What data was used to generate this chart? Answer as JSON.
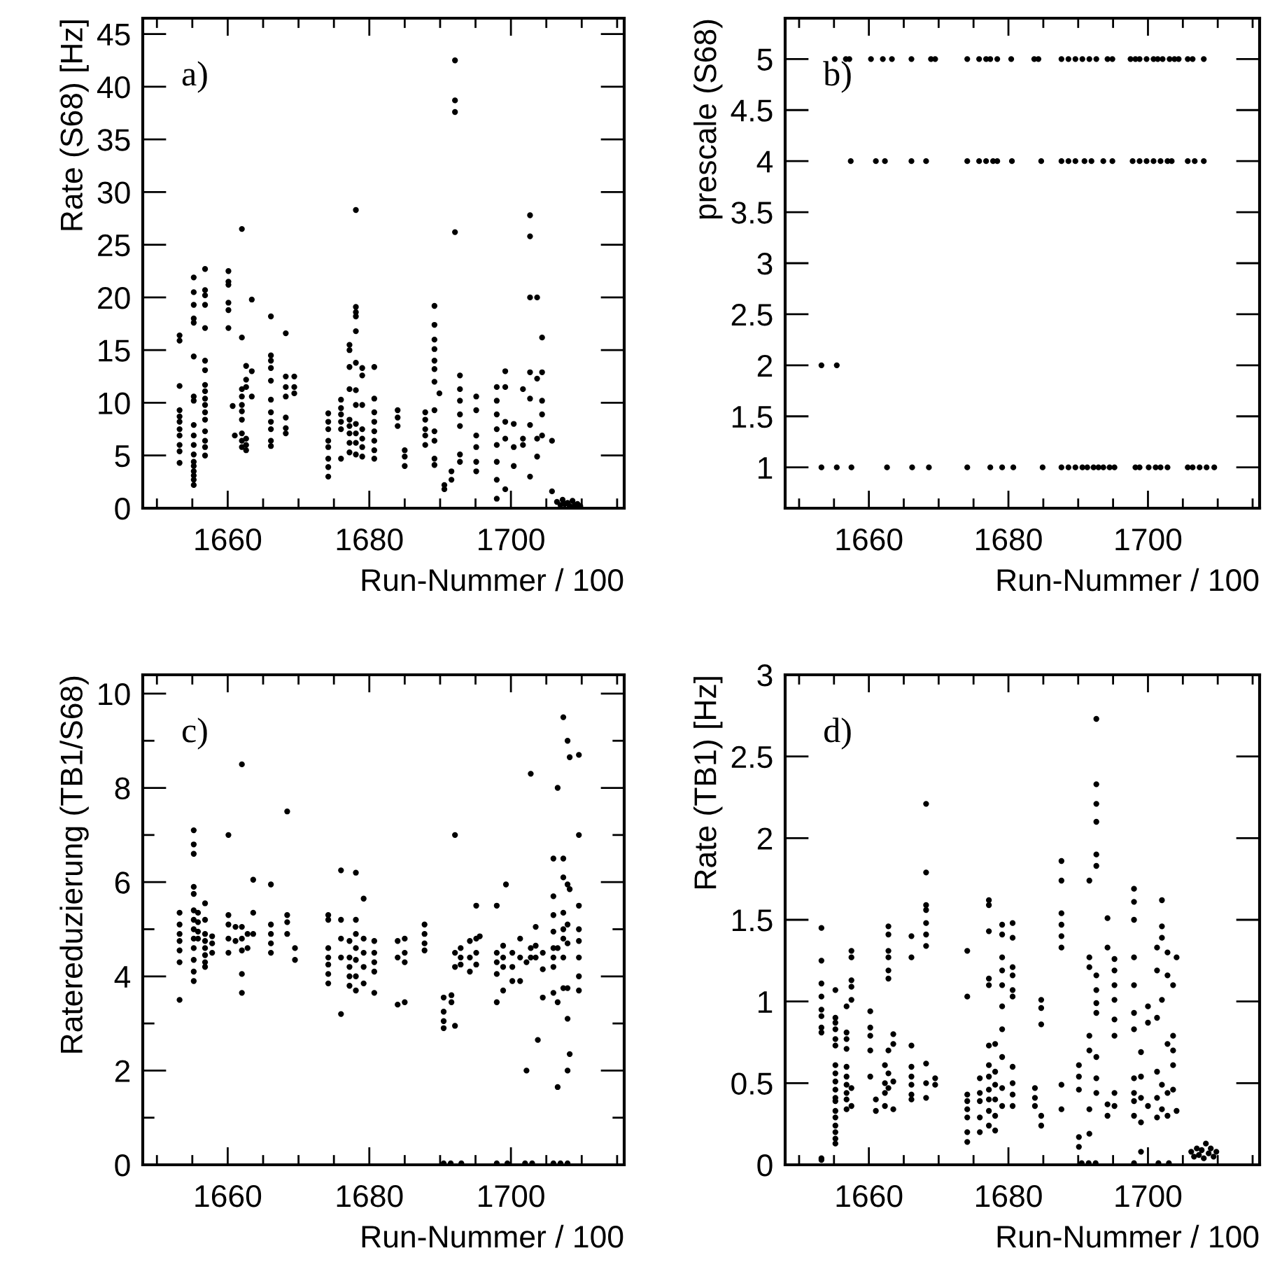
{
  "chart_data": [
    {
      "type": "scatter",
      "ylabel": "Rate (S68) [Hz]",
      "xlabel": "Run-Nummer / 100",
      "annotations": [
        "a)"
      ],
      "marker": "circle",
      "color": "#000000",
      "xlim": [
        1648,
        1716
      ],
      "ylim": [
        0,
        46.5
      ],
      "xticks": [
        {
          "value": 1650,
          "label": null
        },
        {
          "value": 1655,
          "label": null
        },
        1660,
        {
          "value": 1665,
          "label": null
        },
        {
          "value": 1670,
          "label": null
        },
        {
          "value": 1675,
          "label": null
        },
        1680,
        {
          "value": 1685,
          "label": null
        },
        {
          "value": 1690,
          "label": null
        },
        {
          "value": 1695,
          "label": null
        },
        1700,
        {
          "value": 1705,
          "label": null
        },
        {
          "value": 1710,
          "label": null
        },
        {
          "value": 1715,
          "label": null
        }
      ],
      "yticks": [
        0,
        5,
        10,
        15,
        20,
        25,
        30,
        35,
        40,
        45
      ],
      "x": [
        1653.2,
        1653.2,
        1653.2,
        1653.2,
        1653.2,
        1653.2,
        1653.2,
        1653.2,
        1653.2,
        1653.2,
        1653.2,
        1655.2,
        1655.2,
        1655.2,
        1655.2,
        1655.2,
        1655.2,
        1655.2,
        1655.2,
        1655.2,
        1655.2,
        1655.2,
        1655.2,
        1655.2,
        1655.2,
        1655.2,
        1655.2,
        1655.2,
        1655.2,
        1656.8,
        1656.8,
        1656.8,
        1656.8,
        1656.8,
        1656.8,
        1656.8,
        1656.8,
        1656.8,
        1656.8,
        1656.8,
        1656.8,
        1656.8,
        1656.8,
        1656.8,
        1656.8,
        1656.8,
        1660.1,
        1660.1,
        1660.1,
        1660.1,
        1660.1,
        1660.1,
        1660.7,
        1661.0,
        1662.0,
        1662.0,
        1662.0,
        1662.0,
        1662.0,
        1662.0,
        1662.0,
        1662.0,
        1662.0,
        1662.0,
        1662.6,
        1662.6,
        1662.6,
        1662.6,
        1662.6,
        1662.6,
        1663.4,
        1663.4,
        1663.4,
        1666.1,
        1666.1,
        1666.1,
        1666.1,
        1666.1,
        1666.1,
        1666.1,
        1666.1,
        1666.1,
        1666.1,
        1666.1,
        1668.2,
        1668.2,
        1668.2,
        1668.2,
        1668.2,
        1668.2,
        1668.2,
        1669.4,
        1669.4,
        1669.4,
        1674.2,
        1674.2,
        1674.2,
        1674.2,
        1674.2,
        1674.2,
        1674.2,
        1674.2,
        1676.0,
        1676.0,
        1676.0,
        1676.0,
        1676.0,
        1676.0,
        1677.2,
        1677.2,
        1677.2,
        1677.2,
        1677.2,
        1677.2,
        1677.2,
        1677.2,
        1677.2,
        1678.1,
        1678.1,
        1678.1,
        1678.1,
        1678.1,
        1678.1,
        1678.1,
        1678.1,
        1678.1,
        1678.1,
        1678.1,
        1678.1,
        1679.0,
        1679.0,
        1679.0,
        1679.0,
        1679.0,
        1679.0,
        1679.0,
        1680.7,
        1680.7,
        1680.7,
        1680.7,
        1680.7,
        1680.7,
        1680.7,
        1680.7,
        1684.0,
        1684.0,
        1684.0,
        1685.0,
        1685.0,
        1685.0,
        1687.9,
        1687.9,
        1687.9,
        1687.9,
        1687.9,
        1689.2,
        1689.2,
        1689.2,
        1689.2,
        1689.2,
        1689.2,
        1689.2,
        1689.2,
        1689.2,
        1689.2,
        1689.2,
        1689.2,
        1689.9,
        1690.6,
        1690.6,
        1691.6,
        1691.6,
        1692.1,
        1692.1,
        1692.1,
        1692.1,
        1692.8,
        1692.8,
        1692.8,
        1692.8,
        1692.8,
        1692.8,
        1692.8,
        1695.1,
        1695.1,
        1695.1,
        1695.1,
        1695.1,
        1695.1,
        1698.0,
        1698.0,
        1698.0,
        1698.0,
        1698.0,
        1698.0,
        1698.0,
        1698.0,
        1699.2,
        1699.2,
        1699.2,
        1699.2,
        1699.2,
        1700.4,
        1700.4,
        1700.4,
        1701.7,
        1701.7,
        1701.7,
        1702.7,
        1702.7,
        1702.7,
        1702.7,
        1702.7,
        1702.7,
        1702.7,
        1703.7,
        1703.7,
        1703.7,
        1703.7,
        1704.4,
        1704.4,
        1704.4,
        1704.4,
        1704.4,
        1705.8,
        1705.8,
        1706.5,
        1707.0,
        1707.3,
        1707.6,
        1708.0,
        1708.3,
        1708.7,
        1709.0,
        1709.4,
        1709.8
      ],
      "values": [
        16.4,
        15.9,
        11.6,
        9.3,
        8.7,
        8.2,
        7.5,
        6.9,
        6.0,
        5.4,
        4.3,
        21.9,
        20.5,
        19.3,
        18.0,
        17.6,
        14.4,
        10.6,
        10.2,
        7.9,
        6.9,
        6.0,
        5.1,
        4.4,
        4.0,
        3.5,
        3.1,
        2.7,
        2.2,
        22.7,
        20.7,
        20.2,
        19.3,
        17.1,
        14.0,
        13.1,
        11.7,
        11.1,
        10.4,
        9.8,
        9.1,
        8.4,
        7.3,
        6.4,
        5.8,
        5.0,
        22.5,
        21.5,
        21.2,
        19.5,
        18.8,
        17.1,
        9.7,
        6.9,
        26.5,
        16.2,
        11.3,
        10.6,
        9.8,
        9.2,
        8.4,
        7.1,
        6.4,
        5.8,
        13.5,
        12.2,
        11.5,
        6.6,
        6.0,
        5.5,
        19.8,
        13.0,
        10.6,
        18.2,
        14.5,
        14.0,
        13.3,
        12.1,
        10.3,
        9.1,
        8.2,
        7.5,
        6.4,
        5.9,
        16.6,
        12.5,
        11.5,
        10.6,
        8.6,
        7.6,
        7.1,
        12.5,
        11.5,
        10.9,
        9.0,
        8.2,
        7.5,
        6.4,
        5.8,
        4.7,
        3.9,
        3.0,
        10.3,
        9.5,
        8.9,
        8.2,
        7.5,
        4.7,
        15.5,
        15.0,
        13.4,
        11.3,
        8.4,
        7.8,
        7.1,
        6.2,
        5.3,
        28.3,
        19.1,
        18.6,
        18.2,
        16.8,
        13.8,
        11.2,
        9.8,
        8.0,
        7.1,
        6.2,
        5.1,
        13.3,
        12.6,
        9.8,
        7.5,
        6.6,
        5.8,
        4.9,
        13.4,
        10.4,
        9.1,
        8.2,
        7.3,
        6.4,
        5.5,
        4.7,
        9.3,
        8.6,
        7.8,
        5.5,
        4.9,
        4.0,
        9.1,
        8.4,
        7.5,
        6.9,
        6.0,
        19.2,
        17.4,
        16.0,
        15.1,
        14.0,
        13.2,
        12.0,
        9.3,
        7.3,
        6.4,
        4.7,
        4.1,
        10.9,
        2.2,
        1.8,
        3.5,
        2.7,
        42.5,
        38.7,
        37.6,
        26.2,
        12.6,
        11.3,
        10.2,
        8.9,
        7.8,
        5.1,
        4.4,
        10.6,
        9.3,
        6.9,
        5.8,
        4.4,
        3.5,
        11.5,
        10.2,
        8.9,
        7.5,
        6.0,
        4.4,
        2.7,
        0.9,
        13.0,
        11.5,
        8.2,
        6.6,
        1.8,
        8.0,
        5.8,
        4.0,
        11.3,
        6.6,
        6.0,
        27.8,
        25.8,
        20.0,
        12.9,
        10.4,
        7.9,
        3.0,
        20.0,
        12.3,
        6.6,
        4.9,
        16.2,
        12.9,
        10.2,
        8.9,
        6.9,
        6.4,
        1.6,
        0.6,
        0.3,
        0.8,
        0.4,
        0.5,
        0.2,
        0.7,
        0.3,
        0.4,
        0.2
      ]
    },
    {
      "type": "scatter",
      "ylabel": "prescale (S68)",
      "xlabel": "Run-Nummer / 100",
      "annotations": [
        "b)"
      ],
      "marker": "circle",
      "color": "#000000",
      "xlim": [
        1648,
        1716
      ],
      "ylim": [
        0.6,
        5.4
      ],
      "xticks": [
        {
          "value": 1650,
          "label": null
        },
        {
          "value": 1655,
          "label": null
        },
        1660,
        {
          "value": 1665,
          "label": null
        },
        {
          "value": 1670,
          "label": null
        },
        {
          "value": 1675,
          "label": null
        },
        1680,
        {
          "value": 1685,
          "label": null
        },
        {
          "value": 1690,
          "label": null
        },
        {
          "value": 1695,
          "label": null
        },
        1700,
        {
          "value": 1705,
          "label": null
        },
        {
          "value": 1710,
          "label": null
        },
        {
          "value": 1715,
          "label": null
        }
      ],
      "yticks": [
        1,
        1.5,
        2,
        2.5,
        3,
        3.5,
        4,
        4.5,
        5
      ],
      "x": [
        1655.1,
        1656.7,
        1657.2,
        1660.3,
        1662.0,
        1663.3,
        1666.1,
        1668.9,
        1669.5,
        1674.1,
        1675.8,
        1676.8,
        1677.4,
        1678.4,
        1680.4,
        1683.7,
        1684.3,
        1687.6,
        1688.6,
        1689.6,
        1690.6,
        1691.6,
        1692.6,
        1694.2,
        1694.9,
        1697.5,
        1698.2,
        1698.8,
        1699.8,
        1700.8,
        1701.4,
        1702.1,
        1703.1,
        1703.8,
        1704.4,
        1705.7,
        1706.4,
        1708.0,
        1657.4,
        1661.0,
        1662.3,
        1666.1,
        1668.2,
        1674.1,
        1675.8,
        1676.8,
        1677.8,
        1678.4,
        1680.5,
        1684.7,
        1687.6,
        1688.6,
        1689.6,
        1690.9,
        1691.9,
        1693.6,
        1694.9,
        1697.8,
        1698.8,
        1699.8,
        1700.8,
        1701.8,
        1702.8,
        1703.4,
        1705.7,
        1706.7,
        1708.0,
        1653.2,
        1655.4,
        1653.2,
        1655.4,
        1657.5,
        1662.6,
        1666.2,
        1668.6,
        1674.1,
        1677.4,
        1679.1,
        1680.7,
        1684.9,
        1687.6,
        1688.6,
        1689.6,
        1690.6,
        1691.3,
        1692.2,
        1692.9,
        1693.6,
        1694.5,
        1695.2,
        1698.2,
        1698.8,
        1700.1,
        1701.1,
        1701.8,
        1702.8,
        1705.7,
        1706.4,
        1707.4,
        1708.4,
        1709.5
      ],
      "values": [
        5,
        5,
        5,
        5,
        5,
        5,
        5,
        5,
        5,
        5,
        5,
        5,
        5,
        5,
        5,
        5,
        5,
        5,
        5,
        5,
        5,
        5,
        5,
        5,
        5,
        5,
        5,
        5,
        5,
        5,
        5,
        5,
        5,
        5,
        5,
        5,
        5,
        5,
        4,
        4,
        4,
        4,
        4,
        4,
        4,
        4,
        4,
        4,
        4,
        4,
        4,
        4,
        4,
        4,
        4,
        4,
        4,
        4,
        4,
        4,
        4,
        4,
        4,
        4,
        4,
        4,
        4,
        2,
        2,
        1,
        1,
        1,
        1,
        1,
        1,
        1,
        1,
        1,
        1,
        1,
        1,
        1,
        1,
        1,
        1,
        1,
        1,
        1,
        1,
        1,
        1,
        1,
        1,
        1,
        1,
        1,
        1,
        1,
        1,
        1,
        1
      ]
    },
    {
      "type": "scatter",
      "ylabel": "Ratereduzierung (TB1/S68)",
      "xlabel": "Run-Nummer / 100",
      "annotations": [
        "c)"
      ],
      "marker": "circle",
      "color": "#000000",
      "xlim": [
        1648,
        1716
      ],
      "ylim": [
        0,
        10.4
      ],
      "xticks": [
        {
          "value": 1650,
          "label": null
        },
        {
          "value": 1655,
          "label": null
        },
        1660,
        {
          "value": 1665,
          "label": null
        },
        {
          "value": 1670,
          "label": null
        },
        {
          "value": 1675,
          "label": null
        },
        1680,
        {
          "value": 1685,
          "label": null
        },
        {
          "value": 1690,
          "label": null
        },
        {
          "value": 1695,
          "label": null
        },
        1700,
        {
          "value": 1705,
          "label": null
        },
        {
          "value": 1710,
          "label": null
        },
        {
          "value": 1715,
          "label": null
        }
      ],
      "yticks": [
        0,
        {
          "value": 1,
          "label": null
        },
        2,
        {
          "value": 3,
          "label": null
        },
        4,
        {
          "value": 5,
          "label": null
        },
        6,
        {
          "value": 7,
          "label": null
        },
        8,
        {
          "value": 9,
          "label": null
        },
        10
      ],
      "x": [
        1653.2,
        1653.2,
        1653.2,
        1653.2,
        1653.2,
        1653.2,
        1653.2,
        1655.2,
        1655.2,
        1655.2,
        1655.2,
        1655.2,
        1655.2,
        1655.2,
        1655.2,
        1655.2,
        1655.2,
        1655.2,
        1655.2,
        1655.2,
        1655.8,
        1655.8,
        1655.8,
        1655.8,
        1656.8,
        1656.8,
        1656.8,
        1656.8,
        1656.8,
        1656.8,
        1656.8,
        1656.8,
        1657.8,
        1657.8,
        1657.8,
        1660.1,
        1660.1,
        1660.1,
        1660.1,
        1660.1,
        1661.1,
        1661.1,
        1662.0,
        1662.0,
        1662.0,
        1662.0,
        1662.0,
        1662.0,
        1662.8,
        1662.8,
        1663.6,
        1663.6,
        1663.6,
        1666.1,
        1666.1,
        1666.1,
        1666.1,
        1666.1,
        1668.4,
        1668.4,
        1668.4,
        1668.4,
        1669.5,
        1669.5,
        1674.2,
        1674.2,
        1674.2,
        1674.2,
        1674.2,
        1674.2,
        1674.2,
        1676.0,
        1676.0,
        1676.0,
        1676.0,
        1676.0,
        1677.2,
        1677.2,
        1677.2,
        1677.2,
        1677.2,
        1678.1,
        1678.1,
        1678.1,
        1678.1,
        1678.1,
        1678.1,
        1678.1,
        1679.2,
        1679.2,
        1679.2,
        1679.2,
        1679.2,
        1680.7,
        1680.7,
        1680.7,
        1680.7,
        1680.7,
        1684.0,
        1684.0,
        1684.0,
        1685.0,
        1685.0,
        1685.0,
        1685.0,
        1687.8,
        1687.8,
        1687.8,
        1687.8,
        1690.5,
        1690.5,
        1690.5,
        1690.5,
        1691.6,
        1691.6,
        1692.1,
        1692.1,
        1692.1,
        1692.1,
        1692.9,
        1692.9,
        1692.9,
        1694.2,
        1694.2,
        1694.2,
        1695.1,
        1695.1,
        1695.1,
        1695.1,
        1695.6,
        1698.0,
        1698.0,
        1698.0,
        1698.0,
        1698.0,
        1698.9,
        1698.9,
        1698.9,
        1698.9,
        1699.3,
        1700.2,
        1700.2,
        1700.2,
        1701.3,
        1701.3,
        1701.3,
        1702.2,
        1702.2,
        1702.8,
        1702.8,
        1702.8,
        1703.5,
        1703.5,
        1703.5,
        1703.8,
        1704.5,
        1704.5,
        1704.5,
        1706.0,
        1706.0,
        1706.0,
        1706.0,
        1706.0,
        1706.0,
        1706.0,
        1706.0,
        1706.6,
        1706.6,
        1706.6,
        1706.6,
        1707.4,
        1707.4,
        1707.4,
        1707.4,
        1707.4,
        1707.4,
        1707.4,
        1707.4,
        1708.0,
        1708.0,
        1708.0,
        1708.0,
        1708.0,
        1708.0,
        1708.0,
        1708.3,
        1708.3,
        1708.3,
        1709.6,
        1709.6,
        1709.6,
        1709.6,
        1709.6,
        1709.6,
        1709.6,
        1709.6,
        1690.5,
        1691.5,
        1693.0,
        1698.0,
        1699.5,
        1702.0,
        1703.0,
        1706.0,
        1707.0,
        1708.0
      ],
      "values": [
        5.35,
        5.1,
        4.9,
        4.75,
        4.55,
        4.3,
        3.5,
        7.1,
        6.8,
        6.6,
        5.9,
        5.75,
        5.4,
        5.2,
        5.0,
        4.8,
        4.6,
        4.35,
        4.1,
        3.9,
        5.35,
        5.15,
        4.95,
        4.8,
        5.55,
        5.2,
        4.9,
        4.75,
        4.6,
        4.45,
        4.3,
        4.2,
        4.85,
        4.7,
        4.5,
        7.0,
        5.3,
        5.1,
        4.8,
        4.5,
        5.05,
        4.75,
        8.5,
        5.05,
        4.8,
        4.55,
        4.05,
        3.65,
        4.9,
        4.6,
        6.05,
        5.35,
        4.9,
        5.95,
        5.1,
        4.9,
        4.7,
        4.5,
        7.5,
        5.3,
        5.15,
        4.9,
        4.6,
        4.35,
        5.3,
        5.2,
        4.6,
        4.4,
        4.25,
        4.05,
        3.85,
        6.25,
        5.2,
        4.8,
        4.4,
        3.2,
        4.75,
        4.4,
        4.2,
        4.0,
        3.8,
        6.2,
        5.2,
        4.9,
        4.6,
        4.35,
        4.0,
        3.7,
        5.65,
        4.8,
        4.5,
        4.2,
        3.85,
        4.75,
        4.5,
        4.3,
        4.1,
        3.65,
        4.75,
        4.4,
        3.4,
        4.8,
        4.5,
        4.3,
        3.45,
        5.1,
        4.9,
        4.7,
        4.55,
        3.55,
        3.25,
        3.05,
        2.9,
        3.6,
        3.45,
        7.0,
        4.5,
        4.2,
        2.95,
        4.6,
        4.4,
        4.25,
        4.75,
        4.4,
        4.1,
        5.5,
        4.8,
        4.5,
        4.25,
        4.85,
        5.5,
        4.5,
        4.3,
        4.05,
        3.45,
        4.65,
        4.4,
        4.2,
        3.7,
        5.95,
        4.5,
        4.2,
        3.9,
        4.8,
        4.4,
        3.9,
        2.0,
        4.3,
        8.3,
        4.6,
        4.4,
        5.05,
        4.65,
        4.4,
        2.65,
        4.5,
        4.15,
        3.55,
        6.5,
        5.7,
        5.3,
        4.95,
        4.6,
        4.4,
        4.2,
        3.65,
        8.0,
        3.45,
        1.65,
        4.6,
        9.5,
        6.5,
        6.1,
        5.35,
        5.0,
        4.8,
        4.4,
        3.75,
        9.0,
        5.95,
        5.1,
        4.7,
        3.75,
        3.1,
        2.0,
        8.65,
        5.85,
        2.35,
        8.7,
        7.0,
        5.5,
        5.0,
        4.75,
        4.4,
        4.0,
        3.7,
        0.03,
        0.03,
        0.03,
        0.03,
        0.03,
        0.03,
        0.03,
        0.03,
        0.03,
        0.03
      ]
    },
    {
      "type": "scatter",
      "ylabel": "Rate (TB1) [Hz]",
      "xlabel": "Run-Nummer / 100",
      "annotations": [
        "d)"
      ],
      "marker": "circle",
      "color": "#000000",
      "xlim": [
        1648,
        1716
      ],
      "ylim": [
        0,
        3
      ],
      "xticks": [
        {
          "value": 1650,
          "label": null
        },
        {
          "value": 1655,
          "label": null
        },
        1660,
        {
          "value": 1665,
          "label": null
        },
        {
          "value": 1670,
          "label": null
        },
        {
          "value": 1675,
          "label": null
        },
        1680,
        {
          "value": 1685,
          "label": null
        },
        {
          "value": 1690,
          "label": null
        },
        {
          "value": 1695,
          "label": null
        },
        1700,
        {
          "value": 1705,
          "label": null
        },
        {
          "value": 1710,
          "label": null
        },
        {
          "value": 1715,
          "label": null
        }
      ],
      "yticks": [
        0,
        0.5,
        1,
        1.5,
        2,
        2.5,
        3
      ],
      "x": [
        1653.2,
        1653.2,
        1653.2,
        1653.2,
        1653.2,
        1653.2,
        1653.2,
        1653.2,
        1653.2,
        1653.2,
        1655.2,
        1655.2,
        1655.2,
        1655.2,
        1655.2,
        1655.2,
        1655.2,
        1655.2,
        1655.2,
        1655.2,
        1655.2,
        1655.2,
        1655.2,
        1655.2,
        1655.2,
        1655.2,
        1655.2,
        1655.2,
        1656.8,
        1656.8,
        1656.8,
        1656.8,
        1656.8,
        1656.8,
        1656.8,
        1656.8,
        1656.8,
        1656.8,
        1657.5,
        1657.5,
        1657.5,
        1657.5,
        1657.5,
        1657.5,
        1657.5,
        1660.2,
        1660.2,
        1660.2,
        1660.2,
        1660.2,
        1661.0,
        1661.0,
        1662.3,
        1662.3,
        1662.3,
        1662.3,
        1662.8,
        1662.8,
        1662.8,
        1662.8,
        1662.8,
        1662.8,
        1662.8,
        1662.8,
        1662.8,
        1663.5,
        1663.5,
        1663.5,
        1663.5,
        1666.1,
        1666.1,
        1666.1,
        1666.1,
        1666.1,
        1666.1,
        1666.1,
        1666.1,
        1668.2,
        1668.2,
        1668.2,
        1668.2,
        1668.2,
        1668.2,
        1668.2,
        1668.2,
        1668.2,
        1668.2,
        1669.5,
        1669.5,
        1674.1,
        1674.1,
        1674.1,
        1674.1,
        1674.1,
        1674.1,
        1674.1,
        1674.1,
        1675.9,
        1675.9,
        1675.9,
        1675.9,
        1675.9,
        1677.2,
        1677.2,
        1677.2,
        1677.2,
        1677.2,
        1677.2,
        1677.2,
        1677.2,
        1677.2,
        1677.2,
        1677.2,
        1677.2,
        1678.1,
        1678.1,
        1678.1,
        1678.1,
        1678.1,
        1678.1,
        1679.1,
        1679.1,
        1679.1,
        1679.1,
        1679.1,
        1679.1,
        1679.1,
        1679.1,
        1679.1,
        1679.1,
        1680.6,
        1680.6,
        1680.6,
        1680.6,
        1680.6,
        1680.6,
        1680.6,
        1680.6,
        1680.6,
        1680.6,
        1683.8,
        1683.8,
        1683.8,
        1684.7,
        1684.7,
        1684.7,
        1684.7,
        1684.7,
        1687.6,
        1687.6,
        1687.6,
        1687.6,
        1687.6,
        1687.6,
        1687.6,
        1687.6,
        1690.1,
        1690.1,
        1690.1,
        1690.1,
        1690.1,
        1691.6,
        1691.6,
        1691.6,
        1691.6,
        1691.6,
        1691.6,
        1691.6,
        1692.6,
        1692.6,
        1692.6,
        1692.6,
        1692.6,
        1692.6,
        1692.6,
        1692.6,
        1692.6,
        1692.6,
        1692.6,
        1692.6,
        1692.6,
        1694.2,
        1694.2,
        1694.2,
        1694.2,
        1695.2,
        1695.2,
        1695.2,
        1695.2,
        1695.2,
        1695.2,
        1695.2,
        1695.2,
        1698.0,
        1698.0,
        1698.0,
        1698.0,
        1698.0,
        1698.0,
        1698.0,
        1698.0,
        1698.0,
        1698.0,
        1698.0,
        1699.0,
        1699.0,
        1699.0,
        1699.0,
        1699.0,
        1700.0,
        1700.0,
        1700.0,
        1701.3,
        1701.3,
        1701.3,
        1701.3,
        1701.3,
        1701.3,
        1702.0,
        1702.0,
        1702.0,
        1702.0,
        1702.0,
        1702.0,
        1702.8,
        1702.8,
        1702.8,
        1702.8,
        1702.8,
        1703.6,
        1703.6,
        1703.6,
        1703.6,
        1703.6,
        1704.1,
        1704.1,
        1690.5,
        1691.5,
        1692.5,
        1698.0,
        1701.5,
        1703.0,
        1706.2,
        1706.6,
        1707.0,
        1707.3,
        1707.7,
        1708.0,
        1708.3,
        1708.7,
        1709.0,
        1709.4,
        1709.8
      ],
      "values": [
        1.45,
        1.25,
        1.11,
        1.03,
        0.95,
        0.91,
        0.84,
        0.81,
        0.04,
        0.03,
        1.07,
        0.9,
        0.87,
        0.83,
        0.77,
        0.73,
        0.61,
        0.56,
        0.51,
        0.46,
        0.41,
        0.39,
        0.33,
        0.29,
        0.24,
        0.2,
        0.16,
        0.13,
        0.97,
        0.81,
        0.77,
        0.71,
        0.6,
        0.54,
        0.49,
        0.44,
        0.4,
        0.34,
        1.31,
        1.27,
        1.13,
        1.09,
        1.01,
        0.36,
        0.47,
        0.94,
        0.84,
        0.79,
        0.7,
        0.54,
        0.4,
        0.33,
        0.61,
        0.5,
        0.44,
        0.36,
        1.46,
        1.41,
        1.31,
        1.27,
        1.19,
        1.14,
        0.7,
        0.56,
        0.47,
        0.8,
        0.74,
        0.51,
        0.34,
        1.4,
        1.27,
        0.73,
        0.6,
        0.54,
        0.49,
        0.43,
        0.4,
        2.21,
        1.79,
        1.59,
        1.56,
        1.48,
        1.41,
        1.34,
        0.62,
        0.5,
        0.41,
        0.53,
        0.49,
        1.31,
        1.03,
        0.43,
        0.39,
        0.34,
        0.29,
        0.2,
        0.14,
        0.53,
        0.44,
        0.39,
        0.29,
        0.2,
        1.62,
        1.59,
        1.43,
        1.14,
        1.1,
        0.73,
        0.61,
        0.54,
        0.46,
        0.4,
        0.33,
        0.24,
        0.74,
        0.57,
        0.49,
        0.4,
        0.3,
        0.21,
        1.47,
        1.41,
        1.27,
        1.19,
        1.1,
        0.97,
        0.83,
        0.66,
        0.47,
        0.36,
        1.48,
        1.39,
        1.21,
        1.16,
        1.07,
        1.03,
        0.6,
        0.5,
        0.43,
        0.36,
        0.47,
        0.41,
        0.36,
        1.01,
        0.96,
        0.86,
        0.3,
        0.24,
        1.86,
        1.74,
        1.54,
        1.47,
        1.4,
        1.33,
        0.49,
        0.34,
        0.61,
        0.54,
        0.46,
        0.17,
        0.11,
        1.74,
        1.27,
        1.21,
        0.79,
        0.7,
        0.34,
        0.19,
        2.73,
        2.33,
        2.21,
        2.1,
        1.9,
        1.83,
        1.16,
        1.07,
        0.99,
        0.93,
        0.66,
        0.53,
        0.44,
        1.51,
        1.33,
        0.37,
        0.3,
        1.26,
        1.19,
        1.1,
        1.01,
        0.89,
        0.79,
        0.44,
        0.36,
        1.69,
        1.61,
        1.5,
        1.27,
        1.1,
        0.93,
        0.83,
        0.53,
        0.44,
        0.39,
        0.3,
        0.69,
        0.54,
        0.41,
        0.26,
        0.08,
        0.97,
        0.87,
        0.36,
        1.33,
        1.19,
        0.9,
        0.57,
        0.41,
        0.29,
        1.62,
        1.46,
        1.39,
        1.01,
        0.49,
        0.34,
        1.3,
        1.16,
        0.74,
        0.44,
        0.3,
        1.1,
        0.79,
        0.7,
        0.61,
        0.46,
        1.27,
        0.33,
        0.01,
        0.01,
        0.01,
        0.01,
        0.01,
        0.01,
        0.08,
        0.05,
        0.1,
        0.06,
        0.09,
        0.04,
        0.13,
        0.07,
        0.1,
        0.05,
        0.08
      ]
    }
  ]
}
